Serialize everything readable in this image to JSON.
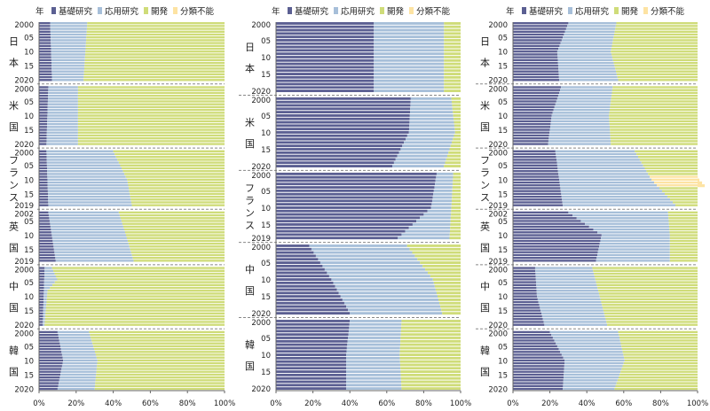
{
  "colors": {
    "basic": "#5b5f92",
    "applied": "#a7bfd9",
    "dev": "#cfdc79",
    "unclassified": "#fde3a3",
    "stripe": "#ffffff",
    "separator": "#888888"
  },
  "legend": {
    "year_label": "年",
    "items": [
      {
        "key": "basic",
        "label": "基礎研究"
      },
      {
        "key": "applied",
        "label": "応用研究"
      },
      {
        "key": "dev",
        "label": "開発"
      },
      {
        "key": "unclassified",
        "label": "分類不能"
      }
    ]
  },
  "x_ticks": [
    "0%",
    "20%",
    "40%",
    "60%",
    "80%",
    "100%"
  ],
  "chart_data": [
    {
      "type": "bar",
      "stacked": "horizontal-100%",
      "xlim": [
        0,
        100
      ],
      "groups": [
        {
          "name": "日本",
          "start": 2000,
          "end": 2020,
          "tick_labels": [
            "2000",
            "05",
            "10",
            "15",
            "2020"
          ],
          "basic": [
            [
              2000,
              6
            ],
            [
              2020,
              7
            ]
          ],
          "applied": [
            [
              2000,
              20
            ],
            [
              2020,
              17
            ]
          ],
          "unclassified": []
        },
        {
          "name": "米国",
          "start": 2000,
          "end": 2020,
          "tick_labels": [
            "2000",
            "05",
            "10",
            "15",
            "2020"
          ],
          "basic": [
            [
              2000,
              5
            ],
            [
              2020,
              4
            ]
          ],
          "applied": [
            [
              2000,
              16
            ],
            [
              2020,
              17
            ]
          ],
          "unclassified": []
        },
        {
          "name": "フランス",
          "start": 2000,
          "end": 2019,
          "tick_labels": [
            "2000",
            "05",
            "10",
            "15",
            "2019"
          ],
          "basic": [
            [
              2000,
              4
            ],
            [
              2019,
              5
            ]
          ],
          "applied": [
            [
              2000,
              36
            ],
            [
              2010,
              43
            ],
            [
              2019,
              45
            ]
          ],
          "unclassified": []
        },
        {
          "name": "英国",
          "start": 2002,
          "end": 2019,
          "tick_labels": [
            "2002",
            "05",
            "10",
            "15",
            "2019"
          ],
          "basic": [
            [
              2002,
              5
            ],
            [
              2019,
              9
            ]
          ],
          "applied": [
            [
              2002,
              38
            ],
            [
              2010,
              40
            ],
            [
              2019,
              42
            ]
          ],
          "unclassified": []
        },
        {
          "name": "中国",
          "start": 2000,
          "end": 2020,
          "tick_labels": [
            "2000",
            "05",
            "10",
            "15",
            "2020"
          ],
          "basic": [
            [
              2000,
              3
            ],
            [
              2020,
              2
            ]
          ],
          "applied": [
            [
              2000,
              4
            ],
            [
              2004,
              7
            ],
            [
              2008,
              2
            ],
            [
              2020,
              1
            ]
          ],
          "unclassified": []
        },
        {
          "name": "韓国",
          "start": 2000,
          "end": 2020,
          "tick_labels": [
            "2000",
            "05",
            "10",
            "15",
            "2020"
          ],
          "basic": [
            [
              2000,
              10
            ],
            [
              2010,
              13
            ],
            [
              2020,
              10
            ]
          ],
          "applied": [
            [
              2000,
              17
            ],
            [
              2020,
              20
            ]
          ],
          "unclassified": []
        }
      ]
    },
    {
      "type": "bar",
      "stacked": "horizontal-100%",
      "xlim": [
        0,
        100
      ],
      "groups": [
        {
          "name": "日本",
          "start": 2000,
          "end": 2020,
          "tick_labels": [
            "2000",
            "05",
            "10",
            "15",
            "2020"
          ],
          "basic": [
            [
              2000,
              53
            ],
            [
              2020,
              53
            ]
          ],
          "applied": [
            [
              2000,
              38
            ],
            [
              2020,
              38
            ]
          ],
          "unclassified": []
        },
        {
          "name": "米国",
          "start": 2000,
          "end": 2020,
          "tick_labels": [
            "2000",
            "05",
            "10",
            "15",
            "2020"
          ],
          "basic": [
            [
              2000,
              73
            ],
            [
              2010,
              72
            ],
            [
              2020,
              63
            ]
          ],
          "applied": [
            [
              2000,
              22
            ],
            [
              2020,
              28
            ]
          ],
          "unclassified": []
        },
        {
          "name": "フランス",
          "start": 2000,
          "end": 2019,
          "tick_labels": [
            "2000",
            "05",
            "10",
            "15",
            "2019"
          ],
          "basic": [
            [
              2000,
              87
            ],
            [
              2010,
              84
            ],
            [
              2019,
              66
            ]
          ],
          "applied": [
            [
              2000,
              9
            ],
            [
              2010,
              11
            ],
            [
              2019,
              28
            ]
          ],
          "unclassified": []
        },
        {
          "name": "中国",
          "start": 2000,
          "end": 2020,
          "tick_labels": [
            "2000",
            "05",
            "10",
            "15",
            "2020"
          ],
          "basic": [
            [
              2000,
              18
            ],
            [
              2010,
              30
            ],
            [
              2020,
              40
            ]
          ],
          "applied": [
            [
              2000,
              53
            ],
            [
              2010,
              55
            ],
            [
              2020,
              50
            ]
          ],
          "unclassified": []
        },
        {
          "name": "韓国",
          "start": 2000,
          "end": 2020,
          "tick_labels": [
            "2000",
            "05",
            "10",
            "15",
            "2020"
          ],
          "basic": [
            [
              2000,
              40
            ],
            [
              2010,
              38
            ],
            [
              2020,
              38
            ]
          ],
          "applied": [
            [
              2000,
              28
            ],
            [
              2020,
              30
            ]
          ],
          "unclassified": []
        }
      ]
    },
    {
      "type": "bar",
      "stacked": "horizontal-100%",
      "xlim": [
        0,
        100
      ],
      "groups": [
        {
          "name": "日本",
          "start": 2000,
          "end": 2020,
          "tick_labels": [
            "2000",
            "05",
            "10",
            "15",
            "2020"
          ],
          "basic": [
            [
              2000,
              30
            ],
            [
              2010,
              24
            ],
            [
              2020,
              25
            ]
          ],
          "applied": [
            [
              2000,
              26
            ],
            [
              2020,
              32
            ]
          ],
          "unclassified": []
        },
        {
          "name": "米国",
          "start": 2000,
          "end": 2020,
          "tick_labels": [
            "2000",
            "05",
            "10",
            "15",
            "2020"
          ],
          "basic": [
            [
              2000,
              26
            ],
            [
              2010,
              21
            ],
            [
              2020,
              19
            ]
          ],
          "applied": [
            [
              2000,
              28
            ],
            [
              2020,
              34
            ]
          ],
          "unclassified": []
        },
        {
          "name": "フランス",
          "start": 2000,
          "end": 2019,
          "tick_labels": [
            "2000",
            "05",
            "10",
            "15",
            "2019"
          ],
          "basic": [
            [
              2000,
              23
            ],
            [
              2010,
              25
            ],
            [
              2019,
              27
            ]
          ],
          "applied": [
            [
              2000,
              43
            ],
            [
              2010,
              50
            ],
            [
              2019,
              61
            ]
          ],
          "unclassified": [
            [
              2008,
              0
            ],
            [
              2009,
              26
            ],
            [
              2010,
              26
            ],
            [
              2011,
              26
            ],
            [
              2012,
              26
            ],
            [
              2013,
              0
            ]
          ]
        },
        {
          "name": "英国",
          "start": 2002,
          "end": 2019,
          "tick_labels": [
            "2002",
            "05",
            "10",
            "15",
            "2019"
          ],
          "basic": [
            [
              2002,
              30
            ],
            [
              2010,
              48
            ],
            [
              2019,
              45
            ]
          ],
          "applied": [
            [
              2002,
              54
            ],
            [
              2010,
              37
            ],
            [
              2019,
              40
            ]
          ],
          "unclassified": []
        },
        {
          "name": "中国",
          "start": 2000,
          "end": 2020,
          "tick_labels": [
            "2000",
            "05",
            "10",
            "15",
            "2020"
          ],
          "basic": [
            [
              2000,
              12
            ],
            [
              2010,
              13
            ],
            [
              2020,
              17
            ]
          ],
          "applied": [
            [
              2000,
              31
            ],
            [
              2010,
              34
            ],
            [
              2020,
              34
            ]
          ],
          "unclassified": []
        },
        {
          "name": "韓国",
          "start": 2000,
          "end": 2020,
          "tick_labels": [
            "2000",
            "05",
            "10",
            "15",
            "2020"
          ],
          "basic": [
            [
              2000,
              20
            ],
            [
              2010,
              28
            ],
            [
              2020,
              27
            ]
          ],
          "applied": [
            [
              2000,
              37
            ],
            [
              2020,
              28
            ]
          ],
          "unclassified": []
        }
      ]
    }
  ]
}
